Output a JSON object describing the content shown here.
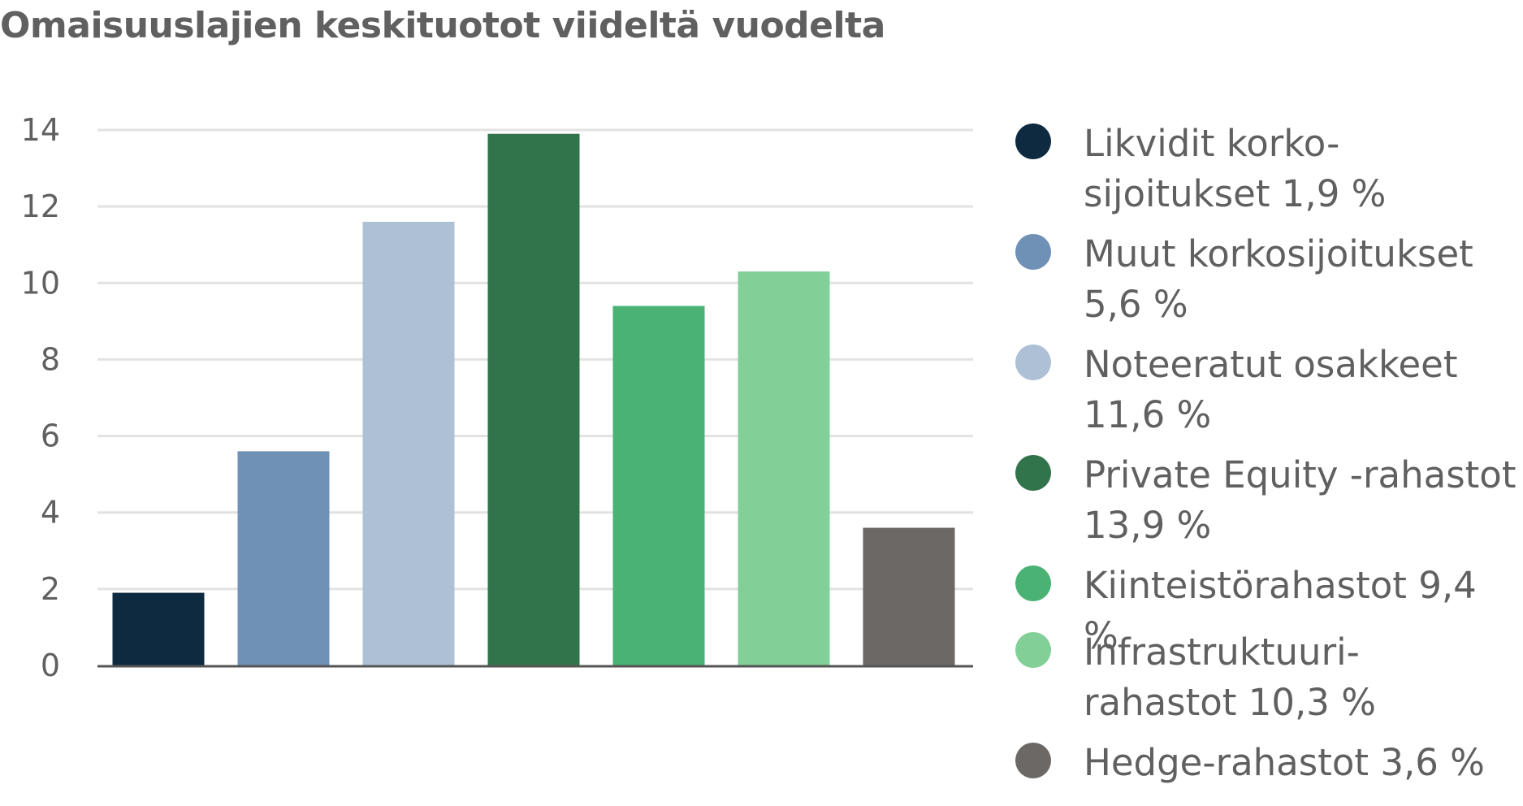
{
  "chart_data": {
    "type": "bar",
    "title": "Omaisuuslajien keskituotot viideltä vuodelta",
    "xlabel": "",
    "ylabel": "",
    "ylim": [
      0,
      14
    ],
    "yticks": [
      0,
      2,
      4,
      6,
      8,
      10,
      12,
      14
    ],
    "grid": true,
    "legend_position": "right",
    "categories": [
      "Likvidit korko-\nsijoitukset 1,9 %",
      "Muut korkosijoitukset\n5,6 %",
      "Noteeratut osakkeet\n11,6 %",
      "Private Equity -rahastot\n13,9 %",
      "Kiinteistörahastot 9,4 %",
      "Infrastruktuuri-\nrahastot 10,3 %",
      "Hedge-rahastot 3,6 %"
    ],
    "values": [
      1.9,
      5.6,
      11.6,
      13.9,
      9.4,
      10.3,
      3.6
    ],
    "colors": [
      "#0e2a40",
      "#6f91b6",
      "#adc0d6",
      "#31734a",
      "#4ab374",
      "#82d098",
      "#6b6866"
    ]
  }
}
